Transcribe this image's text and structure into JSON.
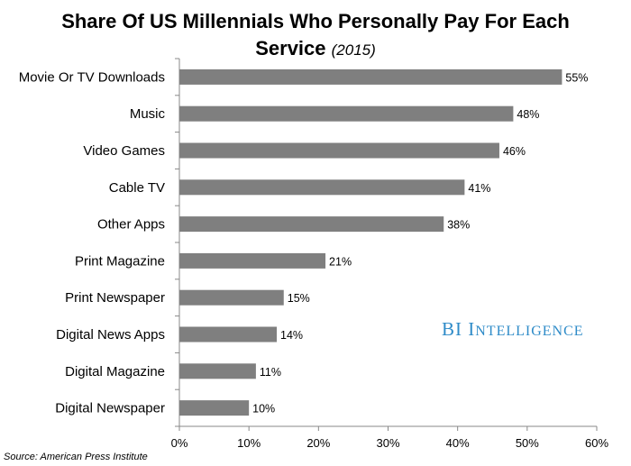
{
  "header": {
    "title_line1": "Share Of US Millennials Who Personally Pay For Each",
    "title_line2": "Service",
    "title_year": "(2015)"
  },
  "chart_data": {
    "type": "bar",
    "orientation": "horizontal",
    "title": "Share Of US Millennials Who Personally Pay For Each Service (2015)",
    "categories": [
      "Movie Or TV Downloads",
      "Music",
      "Video Games",
      "Cable TV",
      "Other Apps",
      "Print Magazine",
      "Print Newspaper",
      "Digital News Apps",
      "Digital Magazine",
      "Digital Newspaper"
    ],
    "values": [
      55,
      48,
      46,
      41,
      38,
      21,
      15,
      14,
      11,
      10
    ],
    "value_labels": [
      "55%",
      "48%",
      "46%",
      "41%",
      "38%",
      "21%",
      "15%",
      "14%",
      "11%",
      "10%"
    ],
    "xlim": [
      0,
      60
    ],
    "xticks": [
      "0%",
      "10%",
      "20%",
      "30%",
      "40%",
      "50%",
      "60%"
    ],
    "bar_color": "#7f7f7f",
    "grid": false,
    "legend": "none"
  },
  "branding": {
    "b1": "BI",
    "i1": "I",
    "rest": "NTELLIGENCE",
    "color": "#2e8bc8"
  },
  "footer": {
    "source": "Source: American Press Institute"
  }
}
